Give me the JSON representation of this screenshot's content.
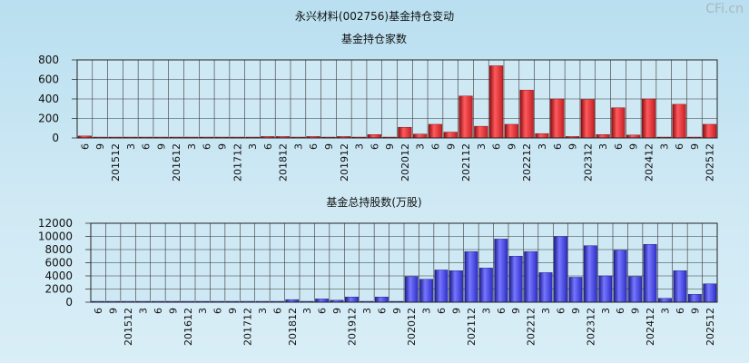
{
  "page_title": "永兴材料(002756)基金持仓变动",
  "watermark": "CFi.cn",
  "colors": {
    "red": "#e8383c",
    "blue": "#4a4ae6",
    "grid": "#222222",
    "background": "#cfe9f4"
  },
  "x_tick_labels": [
    "6",
    "9",
    "201512",
    "3",
    "6",
    "9",
    "201612",
    "3",
    "6",
    "9",
    "201712",
    "3",
    "6",
    "201812",
    "3",
    "6",
    "9",
    "201912",
    "3",
    "6",
    "9",
    "202012",
    "3",
    "6",
    "9",
    "202112",
    "3",
    "6",
    "9",
    "202212",
    "3",
    "6",
    "9",
    "202312",
    "3",
    "6",
    "9",
    "202412",
    "3",
    "6",
    "9",
    "202512"
  ],
  "chart_data": [
    {
      "type": "bar",
      "title": "基金持仓家数",
      "series": [
        {
          "values": [
            20,
            5,
            5,
            5,
            5,
            5,
            5,
            5,
            5,
            5,
            5,
            5,
            15,
            15,
            5,
            15,
            5,
            15,
            5,
            35,
            5,
            110,
            40,
            140,
            60,
            430,
            120,
            740,
            140,
            490,
            45,
            400,
            15,
            395,
            35,
            310,
            30,
            400,
            5,
            345,
            5,
            140
          ]
        }
      ],
      "ylim": [
        0,
        800
      ],
      "yticks": [
        0,
        200,
        400,
        600,
        800
      ],
      "grid": true,
      "legend": "none"
    },
    {
      "type": "bar",
      "title": "基金总持股数(万股)",
      "series": [
        {
          "values": [
            100,
            100,
            100,
            100,
            100,
            100,
            100,
            100,
            100,
            100,
            100,
            100,
            100,
            400,
            100,
            500,
            300,
            800,
            100,
            800,
            100,
            3900,
            3500,
            4900,
            4800,
            7700,
            5200,
            9600,
            7000,
            7700,
            4500,
            10000,
            3800,
            8600,
            4000,
            7900,
            3900,
            8800,
            600,
            4800,
            1200,
            2800
          ]
        }
      ],
      "ylim": [
        0,
        12000
      ],
      "yticks": [
        0,
        2000,
        4000,
        6000,
        8000,
        10000,
        12000
      ],
      "grid": true,
      "legend": "none"
    }
  ]
}
